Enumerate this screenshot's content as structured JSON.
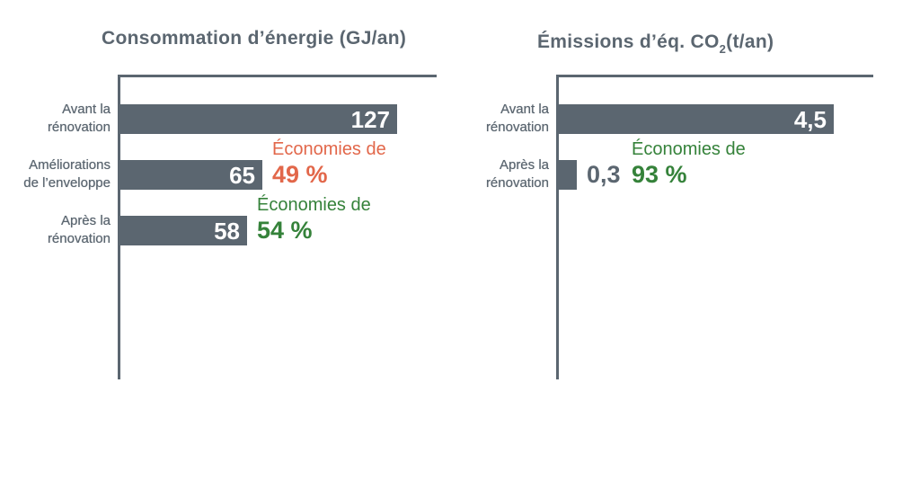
{
  "colors": {
    "bar": "#5b6670",
    "axis": "#5b6670",
    "title_text": "#5b6670",
    "label_text": "#5b6670",
    "value_inside_text": "#ffffff",
    "value_outside_text": "#5b6670",
    "accent_orange": "#e2674a",
    "accent_green": "#35823a",
    "background": "#ffffff"
  },
  "chart_data": [
    {
      "type": "bar",
      "orientation": "horizontal",
      "title_parts": {
        "pre": "Consommation d’énergie (GJ/an)",
        "sub": "",
        "post": ""
      },
      "title": "Consommation d’énergie (GJ/an)",
      "xlim": [
        0,
        145
      ],
      "grid": false,
      "legend": false,
      "categories": [
        "Avant la rénovation",
        "Améliorations de l’enveloppe",
        "Après la rénovation"
      ],
      "values": [
        127,
        65,
        58
      ],
      "bars": [
        {
          "category_lines": [
            "Avant la",
            "rénovation"
          ],
          "value": 127,
          "value_label": "127",
          "value_position": "inside"
        },
        {
          "category_lines": [
            "Améliorations",
            "de l’enveloppe"
          ],
          "value": 65,
          "value_label": "65",
          "value_position": "inside",
          "annotation": {
            "line1": "Économies de",
            "line2": "49 %",
            "color": "#e2674a"
          }
        },
        {
          "category_lines": [
            "Après la",
            "rénovation"
          ],
          "value": 58,
          "value_label": "58",
          "value_position": "inside",
          "annotation": {
            "line1": "Économies de",
            "line2": "54 %",
            "color": "#35823a"
          }
        }
      ]
    },
    {
      "type": "bar",
      "orientation": "horizontal",
      "title_parts": {
        "pre": "Émissions d’éq. CO",
        "sub": "2",
        "post": "(t/an)"
      },
      "title": "Émissions d’éq. CO2(t/an)",
      "xlim": [
        0,
        5.15
      ],
      "grid": false,
      "legend": false,
      "categories": [
        "Avant la rénovation",
        "Après la rénovation"
      ],
      "values": [
        4.5,
        0.3
      ],
      "bars": [
        {
          "category_lines": [
            "Avant la",
            "rénovation"
          ],
          "value": 4.5,
          "value_label": "4,5",
          "value_position": "inside"
        },
        {
          "category_lines": [
            "Après la",
            "rénovation"
          ],
          "value": 0.3,
          "value_label": "0,3",
          "value_position": "outside",
          "annotation": {
            "line1": "Économies de",
            "line2": "93 %",
            "color": "#35823a"
          }
        }
      ]
    }
  ]
}
